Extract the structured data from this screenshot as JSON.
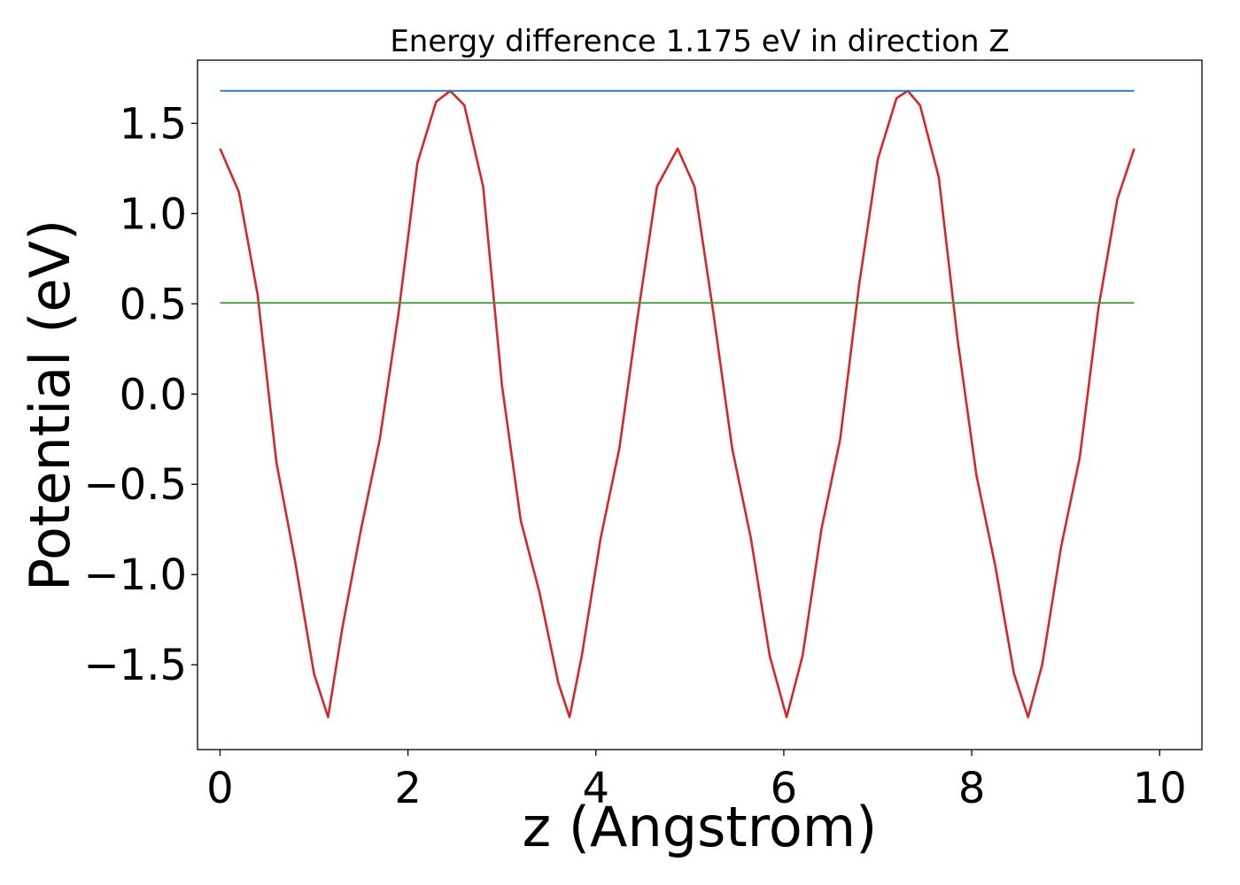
{
  "chart_data": {
    "type": "line",
    "title": "Energy difference 1.175 eV in direction Z",
    "xlabel": "z (Angstrom)",
    "ylabel": "Potential (eV)",
    "xlim": [
      -0.24,
      10.45
    ],
    "ylim": [
      -1.97,
      1.85
    ],
    "xticks": [
      0,
      2,
      4,
      6,
      8,
      10
    ],
    "xtick_labels": [
      "0",
      "2",
      "4",
      "6",
      "8",
      "10"
    ],
    "yticks": [
      -1.5,
      -1.0,
      -0.5,
      0.0,
      0.5,
      1.0,
      1.5
    ],
    "ytick_labels": [
      "−1.5",
      "−1.0",
      "−0.5",
      "0.0",
      "0.5",
      "1.0",
      "1.5"
    ],
    "grid": false,
    "legend": "none",
    "series": [
      {
        "color": "#d62728",
        "x": [
          0.0,
          0.2,
          0.4,
          0.6,
          0.8,
          1.0,
          1.15,
          1.3,
          1.5,
          1.7,
          1.9,
          2.1,
          2.3,
          2.45,
          2.6,
          2.8,
          3.0,
          3.2,
          3.4,
          3.6,
          3.72,
          3.85,
          4.05,
          4.25,
          4.45,
          4.65,
          4.87,
          5.05,
          5.25,
          5.45,
          5.65,
          5.85,
          6.03,
          6.2,
          6.4,
          6.6,
          6.8,
          7.0,
          7.2,
          7.32,
          7.45,
          7.65,
          7.85,
          8.05,
          8.25,
          8.45,
          8.6,
          8.75,
          8.95,
          9.15,
          9.35,
          9.55,
          9.73
        ],
        "y": [
          1.36,
          1.12,
          0.55,
          -0.38,
          -0.93,
          -1.55,
          -1.79,
          -1.3,
          -0.75,
          -0.25,
          0.45,
          1.28,
          1.62,
          1.68,
          1.6,
          1.15,
          0.05,
          -0.7,
          -1.1,
          -1.6,
          -1.79,
          -1.45,
          -0.8,
          -0.3,
          0.45,
          1.15,
          1.36,
          1.15,
          0.45,
          -0.3,
          -0.8,
          -1.45,
          -1.79,
          -1.45,
          -0.75,
          -0.25,
          0.6,
          1.3,
          1.64,
          1.68,
          1.6,
          1.2,
          0.3,
          -0.45,
          -0.95,
          -1.55,
          -1.79,
          -1.5,
          -0.85,
          -0.35,
          0.48,
          1.08,
          1.36
        ]
      },
      {
        "color": "#1f77b4",
        "x": [
          0.0,
          9.73
        ],
        "y": [
          1.68,
          1.68
        ]
      },
      {
        "color": "#2ca02c",
        "x": [
          0.0,
          9.73
        ],
        "y": [
          0.505,
          0.505
        ]
      }
    ]
  }
}
